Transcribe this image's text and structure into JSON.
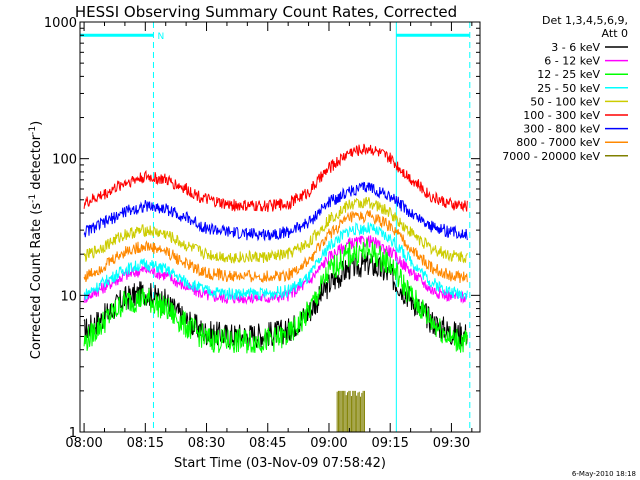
{
  "page": {
    "title": "HESSI Observing Summary Count Rates, Corrected",
    "date_stamp": "6-May-2010 18:18"
  },
  "chart_data": {
    "type": "line",
    "title": "HESSI Observing Summary Count Rates, Corrected",
    "xlabel": "Start Time (03-Nov-09 07:58:42)",
    "ylabel_parts": [
      "Corrected Count Rate (s",
      "-1",
      " detector",
      "-1",
      ")"
    ],
    "x_ticks": [
      "08:00",
      "08:15",
      "08:30",
      "08:45",
      "09:00",
      "09:15",
      "09:30"
    ],
    "x_tick_minutes": [
      0,
      15,
      30,
      45,
      60,
      75,
      90
    ],
    "xlim_minutes": [
      -1.0,
      97.0
    ],
    "y_scale": "log",
    "ylim": [
      1,
      1000
    ],
    "y_ticks": [
      "1",
      "10",
      "100",
      "1000"
    ],
    "y_tick_values": [
      1,
      10,
      100,
      1000
    ],
    "legend_header": [
      "Det 1,3,4,5,6,9,",
      "Att 0"
    ],
    "legend_position": "right",
    "series": [
      {
        "name": "3 - 6 keV",
        "color": "#000000",
        "x": [
          0,
          5,
          10,
          15,
          20,
          25,
          30,
          35,
          40,
          45,
          50,
          55,
          60,
          65,
          70,
          75,
          80,
          85,
          90,
          94
        ],
        "y": [
          5.5,
          7.0,
          9.5,
          10.5,
          9.0,
          6.5,
          5.3,
          5.1,
          5.1,
          5.2,
          5.5,
          7.5,
          12,
          16,
          17,
          14,
          9.5,
          6.5,
          5.3,
          5.2
        ]
      },
      {
        "name": "6 - 12 keV",
        "color": "#ff00ff",
        "x": [
          0,
          5,
          10,
          15,
          20,
          25,
          30,
          35,
          40,
          45,
          50,
          55,
          60,
          65,
          70,
          75,
          80,
          85,
          90,
          94
        ],
        "y": [
          9.5,
          11.5,
          14.0,
          15.5,
          14.0,
          11.5,
          10.0,
          9.6,
          9.6,
          9.6,
          10.0,
          12.5,
          19,
          24,
          25,
          21,
          15,
          11,
          9.8,
          9.7
        ]
      },
      {
        "name": "12 - 25 keV",
        "color": "#00ff00",
        "x": [
          0,
          5,
          10,
          15,
          20,
          25,
          30,
          35,
          40,
          45,
          50,
          55,
          60,
          65,
          70,
          75,
          80,
          85,
          90,
          94
        ],
        "y": [
          4.5,
          6.5,
          9.0,
          9.5,
          8.0,
          6.0,
          4.8,
          4.6,
          4.6,
          4.7,
          5.0,
          7.5,
          15,
          20,
          21,
          17,
          10,
          6.5,
          4.8,
          4.5
        ]
      },
      {
        "name": "25 - 50 keV",
        "color": "#00ffff",
        "x": [
          0,
          5,
          10,
          15,
          20,
          25,
          30,
          35,
          40,
          45,
          50,
          55,
          60,
          65,
          70,
          75,
          80,
          85,
          90,
          94
        ],
        "y": [
          10.0,
          12.5,
          15.5,
          17.0,
          15.5,
          12.5,
          10.8,
          10.3,
          10.3,
          10.3,
          10.8,
          13.5,
          23,
          30,
          31,
          26,
          18,
          12.5,
          10.5,
          10.3
        ]
      },
      {
        "name": "50 - 100 keV",
        "color": "#cccc00",
        "x": [
          0,
          5,
          10,
          15,
          20,
          25,
          30,
          35,
          40,
          45,
          50,
          55,
          60,
          65,
          70,
          75,
          80,
          85,
          90,
          94
        ],
        "y": [
          19,
          23,
          28,
          30,
          28,
          23,
          20,
          19,
          19,
          19,
          20,
          24,
          36,
          46,
          48,
          40,
          29,
          22,
          19.5,
          19
        ]
      },
      {
        "name": "100 - 300 keV",
        "color": "#ff0000",
        "x": [
          0,
          5,
          10,
          15,
          20,
          25,
          30,
          35,
          40,
          45,
          50,
          55,
          60,
          65,
          70,
          75,
          80,
          85,
          90,
          94
        ],
        "y": [
          47,
          55,
          67,
          74,
          70,
          60,
          50,
          46,
          45,
          45,
          47,
          57,
          85,
          112,
          120,
          100,
          72,
          53,
          46,
          45
        ]
      },
      {
        "name": "300 - 800 keV",
        "color": "#0000ff",
        "x": [
          0,
          5,
          10,
          15,
          20,
          25,
          30,
          35,
          40,
          45,
          50,
          55,
          60,
          65,
          70,
          75,
          80,
          85,
          90,
          94
        ],
        "y": [
          29,
          34,
          41,
          45,
          43,
          37,
          31,
          29,
          28,
          28,
          29,
          34,
          48,
          58,
          62,
          53,
          40,
          32,
          29,
          28
        ]
      },
      {
        "name": "800 - 7000 keV",
        "color": "#ff8800",
        "x": [
          0,
          5,
          10,
          15,
          20,
          25,
          30,
          35,
          40,
          45,
          50,
          55,
          60,
          65,
          70,
          75,
          80,
          85,
          90,
          94
        ],
        "y": [
          13.5,
          16.5,
          21,
          23,
          21,
          17,
          14.5,
          13.8,
          13.7,
          13.7,
          14.2,
          17.5,
          28,
          37,
          38,
          32,
          22,
          16,
          13.8,
          13.5
        ]
      },
      {
        "name": "7000 - 20000 keV",
        "color": "#808000",
        "x": [
          62,
          62,
          69,
          69
        ],
        "y": [
          1,
          2,
          2,
          1
        ]
      }
    ],
    "annotations": {
      "night_marker_text": "N",
      "solid_vlines_minutes": [
        -1.0,
        76.5
      ],
      "dashed_vlines_minutes": [
        17.0,
        94.5
      ],
      "bars": [
        {
          "from_minutes": -1.0,
          "to_minutes": 17.0,
          "y": 800
        },
        {
          "from_minutes": 76.5,
          "to_minutes": 94.5,
          "y": 800
        }
      ]
    }
  }
}
